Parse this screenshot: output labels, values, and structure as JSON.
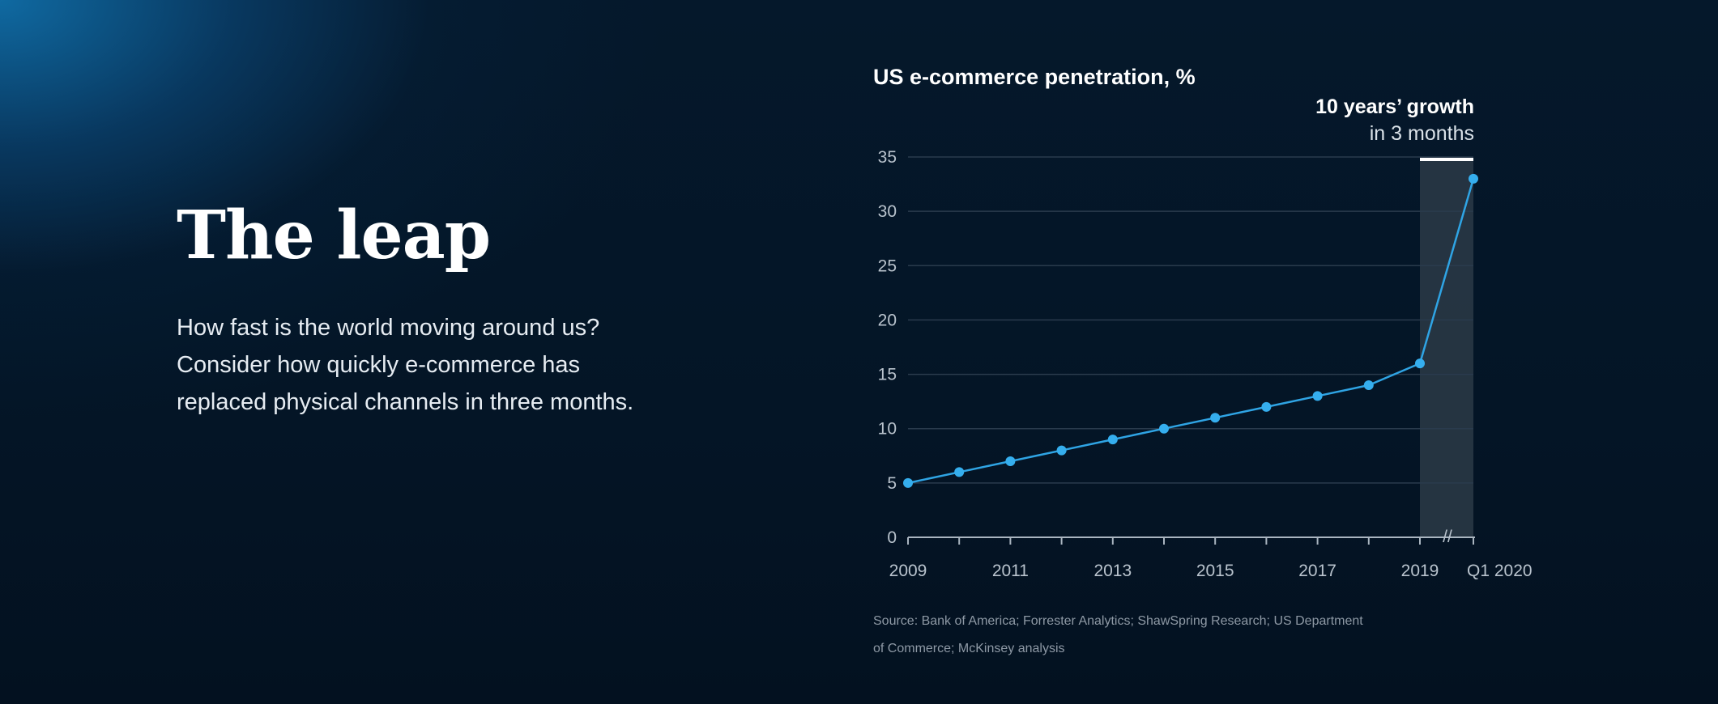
{
  "heading": "The leap",
  "description": "How fast is the world moving around us? Consider how quickly e-commerce has replaced physical channels in three months.",
  "chart_data": {
    "type": "line",
    "title": "US e-commerce penetration, %",
    "x": [
      "2009",
      "2010",
      "2011",
      "2012",
      "2013",
      "2014",
      "2015",
      "2016",
      "2017",
      "2018",
      "2019",
      "Q1 2020"
    ],
    "values": [
      5,
      6,
      7,
      8,
      9,
      10,
      11,
      12,
      13,
      14,
      16,
      33
    ],
    "x_tick_labels": [
      "2009",
      "2011",
      "2013",
      "2015",
      "2017",
      "2019",
      "Q1 2020"
    ],
    "y_ticks": [
      0,
      5,
      10,
      15,
      20,
      25,
      30,
      35
    ],
    "ylim": [
      0,
      35
    ],
    "grid": true,
    "annotation": {
      "bold": "10 years’ growth",
      "regular": "in 3 months",
      "x_start": "2019",
      "x_end": "Q1 2020"
    },
    "axis_break": "//",
    "source_lines": [
      "Source: Bank of America; Forrester Analytics; ShawSpring Research; US Department",
      "of Commerce; McKinsey analysis"
    ],
    "colors": {
      "line": "#2fa4e4",
      "point": "#35aeee",
      "grid": "#2a3b4d",
      "axis": "#aab5c0",
      "highlight": "#2b3947"
    }
  }
}
